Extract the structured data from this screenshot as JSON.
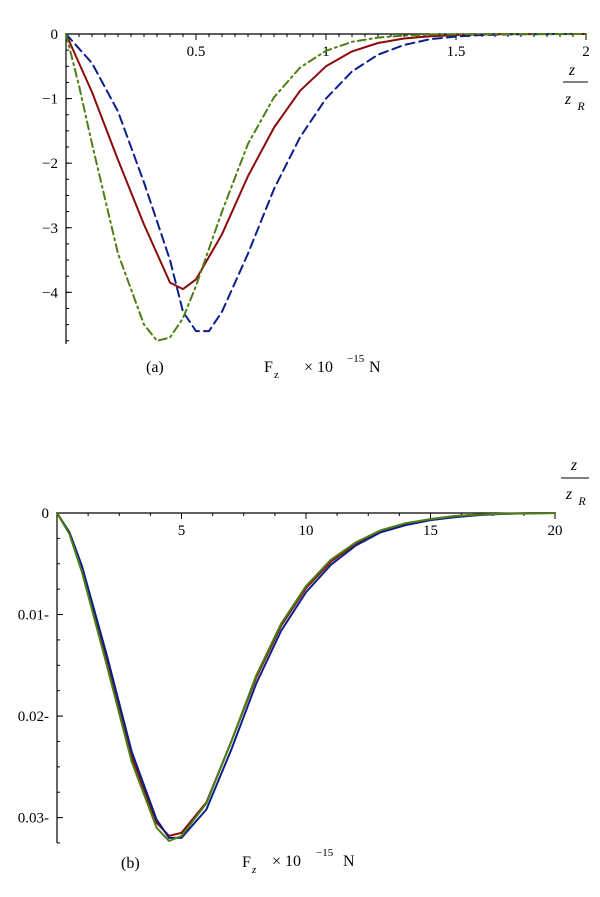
{
  "chart_data": [
    {
      "id": "a",
      "type": "line",
      "panel_label": "(a)",
      "ylabel": {
        "base": "F",
        "sub": "z",
        "scale": "× 10",
        "exp": "−15",
        "unit": "N"
      },
      "xlabel": {
        "num": "z",
        "den": "z",
        "den_sub": "R"
      },
      "xlim": [
        0,
        2
      ],
      "ylim": [
        -4.8,
        0
      ],
      "x_ticks": [
        0.5,
        1,
        1.5,
        2
      ],
      "x_tick_labels": [
        "0.5",
        "1",
        "1.5",
        "2"
      ],
      "y_ticks": [
        0,
        -1,
        -2,
        -3,
        -4
      ],
      "y_tick_labels": [
        "0",
        "−1",
        "−2",
        "−3",
        "−4"
      ],
      "series": [
        {
          "color": "#8b0a0a",
          "dash": "solid",
          "x": [
            0,
            0.1,
            0.2,
            0.3,
            0.4,
            0.45,
            0.5,
            0.6,
            0.7,
            0.8,
            0.9,
            1.0,
            1.1,
            1.2,
            1.3,
            1.4,
            1.5,
            1.6,
            1.7,
            1.8,
            2.0
          ],
          "y": [
            0,
            -0.9,
            -1.95,
            -2.95,
            -3.85,
            -3.95,
            -3.8,
            -3.1,
            -2.2,
            -1.45,
            -0.88,
            -0.5,
            -0.27,
            -0.14,
            -0.07,
            -0.035,
            -0.015,
            -0.006,
            -0.002,
            -0.001,
            0
          ]
        },
        {
          "color": "#0b1f8c",
          "dash": "dashed",
          "x": [
            0,
            0.1,
            0.2,
            0.3,
            0.4,
            0.45,
            0.5,
            0.55,
            0.6,
            0.7,
            0.8,
            0.9,
            1.0,
            1.1,
            1.2,
            1.3,
            1.4,
            1.5,
            1.6,
            1.7,
            1.8,
            2.0
          ],
          "y": [
            0,
            -0.45,
            -1.2,
            -2.3,
            -3.5,
            -4.3,
            -4.6,
            -4.6,
            -4.3,
            -3.4,
            -2.4,
            -1.6,
            -1.0,
            -0.58,
            -0.32,
            -0.17,
            -0.08,
            -0.038,
            -0.016,
            -0.006,
            -0.002,
            0
          ]
        },
        {
          "color": "#4d7f12",
          "dash": "dashdot",
          "x": [
            0,
            0.05,
            0.1,
            0.2,
            0.3,
            0.35,
            0.4,
            0.45,
            0.5,
            0.6,
            0.7,
            0.8,
            0.9,
            1.0,
            1.1,
            1.2,
            1.3,
            1.4,
            1.5,
            1.6,
            1.8,
            2.0
          ],
          "y": [
            0,
            -0.8,
            -1.7,
            -3.4,
            -4.5,
            -4.75,
            -4.7,
            -4.4,
            -3.9,
            -2.75,
            -1.7,
            -0.98,
            -0.52,
            -0.26,
            -0.12,
            -0.055,
            -0.024,
            -0.01,
            -0.004,
            -0.0015,
            -0.0003,
            0
          ]
        }
      ]
    },
    {
      "id": "b",
      "type": "line",
      "panel_label": "(b)",
      "ylabel": {
        "base": "F",
        "sub": "z",
        "scale": "× 10",
        "exp": "−15",
        "unit": "N"
      },
      "xlabel": {
        "num": "z",
        "den": "z",
        "den_sub": "R"
      },
      "xlim": [
        0,
        20
      ],
      "ylim": [
        0,
        0.0325
      ],
      "x_ticks": [
        5,
        10,
        15,
        20
      ],
      "x_tick_labels": [
        "5",
        "10",
        "15",
        "20"
      ],
      "y_ticks": [
        0,
        0.01,
        0.02,
        0.03
      ],
      "y_tick_labels": [
        "0",
        "0.01-",
        "0.02-",
        "0.03-"
      ],
      "series": [
        {
          "color": "#8b0a0a",
          "dash": "solid",
          "x": [
            0,
            0.5,
            1,
            2,
            3,
            4,
            4.5,
            5,
            6,
            7,
            8,
            9,
            10,
            11,
            12,
            13,
            14,
            15,
            16,
            17,
            18,
            19,
            20
          ],
          "y": [
            0,
            0.002,
            0.0055,
            0.0145,
            0.024,
            0.0305,
            0.0318,
            0.0315,
            0.0285,
            0.0225,
            0.0162,
            0.0111,
            0.0074,
            0.0048,
            0.003,
            0.0018,
            0.0011,
            0.0006,
            0.0003,
            0.00015,
            7e-05,
            3e-05,
            0
          ]
        },
        {
          "color": "#0b1f8c",
          "dash": "solid",
          "x": [
            0,
            0.5,
            1,
            2,
            3,
            4,
            4.5,
            5,
            6,
            7,
            8,
            9,
            10,
            11,
            12,
            13,
            14,
            15,
            16,
            17,
            18,
            19,
            20
          ],
          "y": [
            0,
            0.0019,
            0.0052,
            0.014,
            0.0235,
            0.0302,
            0.032,
            0.032,
            0.0292,
            0.0233,
            0.0168,
            0.0116,
            0.0078,
            0.0051,
            0.0032,
            0.0019,
            0.0012,
            0.0007,
            0.0004,
            0.0002,
            8e-05,
            3e-05,
            0
          ]
        },
        {
          "color": "#4d7f12",
          "dash": "solid",
          "x": [
            0,
            0.5,
            1,
            2,
            3,
            4,
            4.5,
            5,
            6,
            7,
            8,
            9,
            10,
            11,
            12,
            13,
            14,
            15,
            16,
            17,
            18,
            19,
            20
          ],
          "y": [
            0,
            0.0021,
            0.0058,
            0.015,
            0.0245,
            0.031,
            0.0323,
            0.0318,
            0.0286,
            0.0225,
            0.016,
            0.0109,
            0.0072,
            0.0046,
            0.0029,
            0.0017,
            0.001,
            0.0006,
            0.0003,
            0.00015,
            6e-05,
            2e-05,
            0
          ]
        }
      ]
    }
  ]
}
